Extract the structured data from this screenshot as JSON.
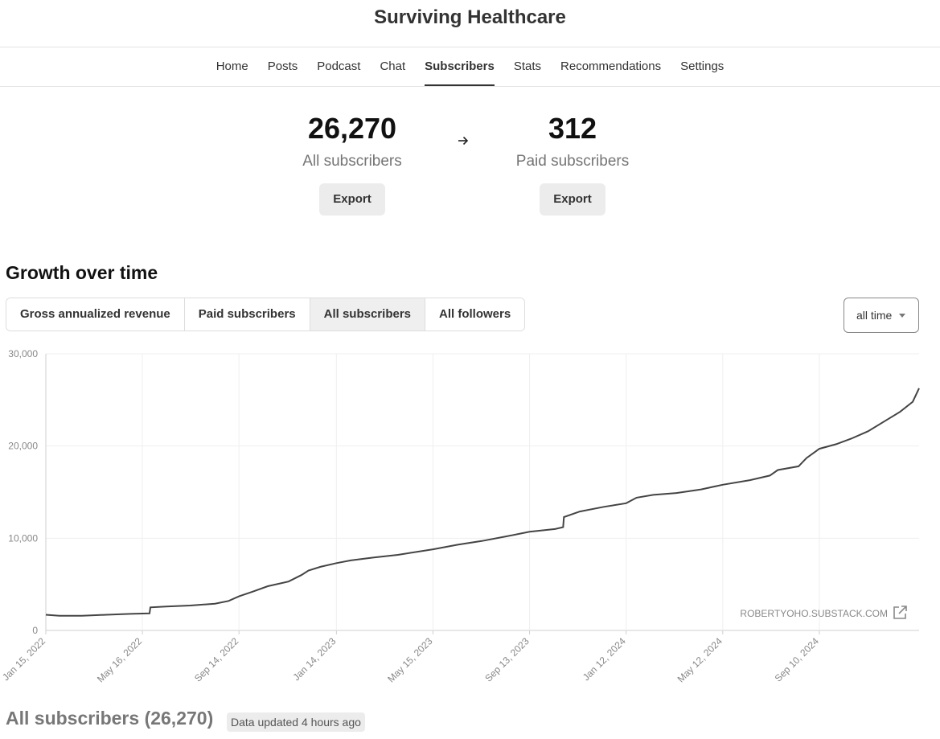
{
  "site": {
    "title": "Surviving Healthcare"
  },
  "nav": {
    "items": [
      {
        "label": "Home",
        "active": false
      },
      {
        "label": "Posts",
        "active": false
      },
      {
        "label": "Podcast",
        "active": false
      },
      {
        "label": "Chat",
        "active": false
      },
      {
        "label": "Subscribers",
        "active": true
      },
      {
        "label": "Stats",
        "active": false
      },
      {
        "label": "Recommendations",
        "active": false
      },
      {
        "label": "Settings",
        "active": false
      }
    ]
  },
  "stats": {
    "all": {
      "value": "26,270",
      "label": "All subscribers",
      "export_label": "Export"
    },
    "paid": {
      "value": "312",
      "label": "Paid subscribers",
      "export_label": "Export"
    },
    "arrow_icon": "arrow-right-icon"
  },
  "growth": {
    "title": "Growth over time",
    "tabs": [
      {
        "label": "Gross annualized revenue",
        "active": false
      },
      {
        "label": "Paid subscribers",
        "active": false
      },
      {
        "label": "All subscribers",
        "active": true
      },
      {
        "label": "All followers",
        "active": false
      }
    ],
    "range": {
      "selected": "all time"
    }
  },
  "chart_data": {
    "type": "line",
    "title": "",
    "xlabel": "",
    "ylabel": "",
    "x_ticks": [
      "Jan 15, 2022",
      "May 16, 2022",
      "Sep 14, 2022",
      "Jan 14, 2023",
      "May 15, 2023",
      "Sep 13, 2023",
      "Jan 12, 2024",
      "May 12, 2024",
      "Sep 10, 2024"
    ],
    "y_ticks": [
      "0",
      "10,000",
      "20,000",
      "30,000"
    ],
    "ylim": [
      0,
      30000
    ],
    "xlim": [
      "2022-01-15",
      "2025-01-13"
    ],
    "grid": true,
    "watermark": "ROBERTYOHO.SUBSTACK.COM",
    "line_color": "#444444",
    "series": [
      {
        "x": [
          "2022-01-15",
          "2022-02-01",
          "2022-03-01",
          "2022-04-01",
          "2022-05-01",
          "2022-05-25",
          "2022-05-26",
          "2022-06-15",
          "2022-07-15",
          "2022-08-15",
          "2022-09-01",
          "2022-09-14",
          "2022-10-01",
          "2022-10-20",
          "2022-11-15",
          "2022-12-01",
          "2022-12-10",
          "2022-12-25",
          "2023-01-14",
          "2023-02-01",
          "2023-03-01",
          "2023-04-01",
          "2023-05-15",
          "2023-06-15",
          "2023-07-15",
          "2023-08-15",
          "2023-09-13",
          "2023-10-15",
          "2023-10-25",
          "2023-10-26",
          "2023-11-15",
          "2023-12-15",
          "2024-01-12",
          "2024-01-25",
          "2024-02-15",
          "2024-03-15",
          "2024-04-15",
          "2024-05-12",
          "2024-06-15",
          "2024-07-10",
          "2024-07-20",
          "2024-08-15",
          "2024-08-25",
          "2024-09-10",
          "2024-10-01",
          "2024-10-20",
          "2024-11-10",
          "2024-12-01",
          "2024-12-20",
          "2025-01-05",
          "2025-01-13"
        ],
        "y": [
          1700,
          1600,
          1600,
          1700,
          1800,
          1850,
          2500,
          2600,
          2700,
          2900,
          3200,
          3700,
          4200,
          4800,
          5300,
          6000,
          6500,
          6900,
          7300,
          7600,
          7900,
          8200,
          8800,
          9300,
          9700,
          10200,
          10700,
          11000,
          11200,
          12300,
          12900,
          13400,
          13800,
          14400,
          14700,
          14900,
          15300,
          15800,
          16300,
          16800,
          17400,
          17800,
          18700,
          19700,
          20200,
          20800,
          21600,
          22700,
          23700,
          24800,
          26270
        ]
      }
    ]
  },
  "bottom": {
    "title": "All subscribers (26,270)",
    "updated": "Data updated 4 hours ago"
  }
}
